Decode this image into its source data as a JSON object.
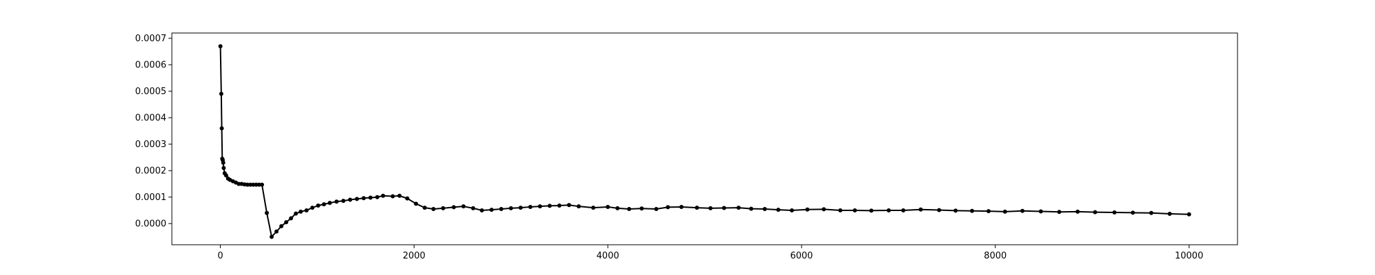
{
  "chart_data": {
    "type": "line",
    "title": "",
    "xlabel": "",
    "ylabel": "",
    "xlim": [
      -500,
      10500
    ],
    "ylim": [
      -8e-05,
      0.00072
    ],
    "x_ticks": [
      0,
      2000,
      4000,
      6000,
      8000,
      10000
    ],
    "x_tick_labels": [
      "0",
      "2000",
      "4000",
      "6000",
      "8000",
      "10000"
    ],
    "y_ticks": [
      0.0,
      0.0001,
      0.0002,
      0.0003,
      0.0004,
      0.0005,
      0.0006,
      0.0007
    ],
    "y_tick_labels": [
      "0.0000",
      "0.0001",
      "0.0002",
      "0.0003",
      "0.0004",
      "0.0005",
      "0.0006",
      "0.0007"
    ],
    "grid": false,
    "line_color": "#000000",
    "marker": "dot",
    "series": [
      {
        "x": [
          1,
          10,
          15,
          20,
          25,
          30,
          35,
          45,
          60,
          80,
          100,
          130,
          160,
          190,
          220,
          250,
          280,
          310,
          340,
          370,
          400,
          430,
          480,
          530,
          580,
          630,
          680,
          730,
          780,
          830,
          890,
          950,
          1010,
          1070,
          1130,
          1200,
          1270,
          1340,
          1410,
          1480,
          1550,
          1620,
          1680,
          1780,
          1850,
          1930,
          2020,
          2110,
          2200,
          2300,
          2410,
          2510,
          2610,
          2700,
          2800,
          2900,
          3000,
          3100,
          3200,
          3300,
          3400,
          3500,
          3600,
          3700,
          3850,
          4000,
          4100,
          4220,
          4350,
          4500,
          4620,
          4760,
          4920,
          5060,
          5200,
          5350,
          5480,
          5620,
          5760,
          5900,
          6060,
          6230,
          6400,
          6550,
          6720,
          6900,
          7050,
          7230,
          7420,
          7590,
          7760,
          7930,
          8100,
          8280,
          8470,
          8660,
          8850,
          9030,
          9230,
          9420,
          9610,
          9800,
          10000
        ],
        "y": [
          0.00067,
          0.00049,
          0.00036,
          0.000245,
          0.00024,
          0.00023,
          0.00021,
          0.00019,
          0.000182,
          0.00017,
          0.000165,
          0.00016,
          0.000155,
          0.00015,
          0.00015,
          0.000148,
          0.000147,
          0.000147,
          0.000147,
          0.000147,
          0.000147,
          0.000147,
          4e-05,
          -5e-05,
          -3e-05,
          -1e-05,
          5e-06,
          2e-05,
          3.8e-05,
          4.5e-05,
          5e-05,
          6e-05,
          6.8e-05,
          7.3e-05,
          7.8e-05,
          8.3e-05,
          8.6e-05,
          9e-05,
          9.3e-05,
          9.6e-05,
          9.8e-05,
          0.0001,
          0.000105,
          0.000103,
          0.000105,
          9.5e-05,
          7.5e-05,
          6e-05,
          5.5e-05,
          5.8e-05,
          6.2e-05,
          6.5e-05,
          5.8e-05,
          5e-05,
          5.2e-05,
          5.5e-05,
          5.8e-05,
          6e-05,
          6.3e-05,
          6.5e-05,
          6.7e-05,
          6.8e-05,
          7e-05,
          6.5e-05,
          6e-05,
          6.3e-05,
          5.8e-05,
          5.5e-05,
          5.7e-05,
          5.5e-05,
          6.2e-05,
          6.3e-05,
          6e-05,
          5.8e-05,
          5.9e-05,
          6e-05,
          5.6e-05,
          5.5e-05,
          5.2e-05,
          5e-05,
          5.3e-05,
          5.4e-05,
          5e-05,
          5e-05,
          4.9e-05,
          5e-05,
          5e-05,
          5.3e-05,
          5.1e-05,
          4.9e-05,
          4.8e-05,
          4.7e-05,
          4.5e-05,
          4.8e-05,
          4.6e-05,
          4.4e-05,
          4.5e-05,
          4.3e-05,
          4.2e-05,
          4.1e-05,
          4e-05,
          3.7e-05,
          3.5e-05
        ]
      }
    ]
  }
}
